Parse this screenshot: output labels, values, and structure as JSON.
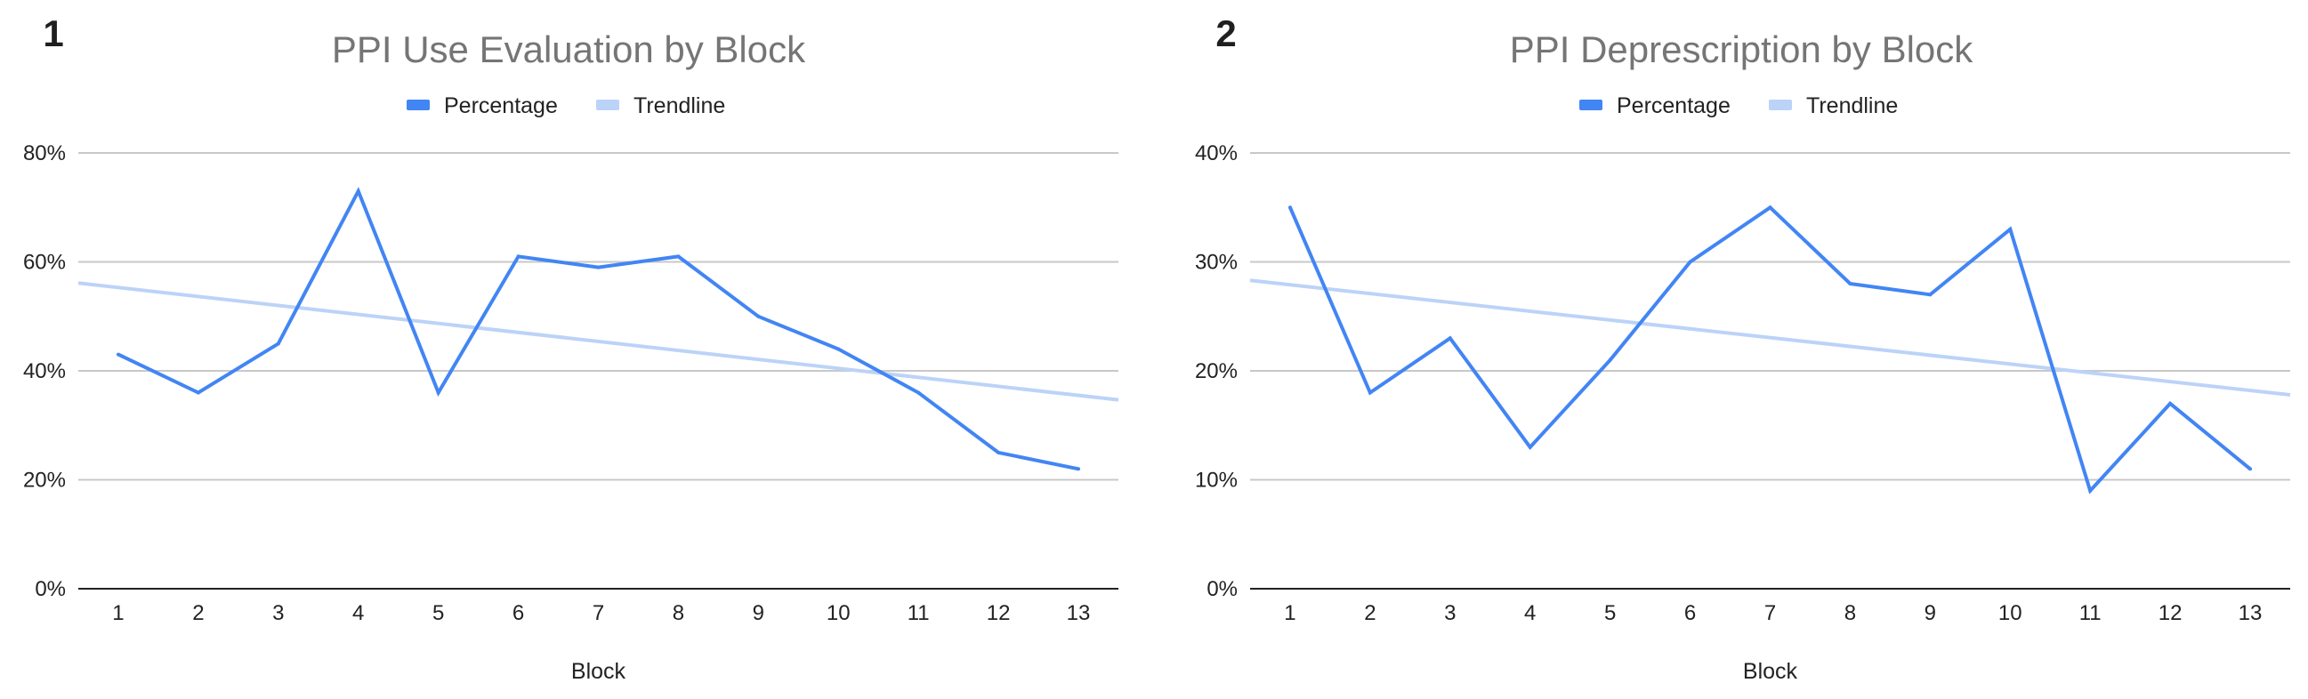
{
  "chart_data": [
    {
      "type": "line",
      "panel_label": "1",
      "title": "PPI Use Evaluation by Block",
      "xlabel": "Block",
      "ylabel": "",
      "categories": [
        "1",
        "2",
        "3",
        "4",
        "5",
        "6",
        "7",
        "8",
        "9",
        "10",
        "11",
        "12",
        "13"
      ],
      "series": [
        {
          "name": "Percentage",
          "color": "#4285f4",
          "values": [
            0.43,
            0.36,
            0.45,
            0.73,
            0.36,
            0.61,
            0.59,
            0.61,
            0.5,
            0.44,
            0.36,
            0.25,
            0.22
          ]
        }
      ],
      "trendline": {
        "name": "Trendline",
        "color": "#bcd3f8",
        "start": 0.553,
        "end": 0.355
      },
      "ylim": [
        0,
        0.8
      ],
      "yticks": [
        0,
        0.2,
        0.4,
        0.6,
        0.8
      ],
      "ytick_labels": [
        "0%",
        "20%",
        "40%",
        "60%",
        "80%"
      ],
      "grid": true,
      "legend_position": "top"
    },
    {
      "type": "line",
      "panel_label": "2",
      "title": "PPI Deprescription by Block",
      "xlabel": "Block",
      "ylabel": "",
      "categories": [
        "1",
        "2",
        "3",
        "4",
        "5",
        "6",
        "7",
        "8",
        "9",
        "10",
        "11",
        "12",
        "13"
      ],
      "series": [
        {
          "name": "Percentage",
          "color": "#4285f4",
          "values": [
            0.35,
            0.18,
            0.23,
            0.13,
            0.21,
            0.3,
            0.35,
            0.28,
            0.27,
            0.33,
            0.09,
            0.17,
            0.11
          ]
        }
      ],
      "trendline": {
        "name": "Trendline",
        "color": "#bcd3f8",
        "start": 0.279,
        "end": 0.182
      },
      "ylim": [
        0,
        0.4
      ],
      "yticks": [
        0,
        0.1,
        0.2,
        0.3,
        0.4
      ],
      "ytick_labels": [
        "0%",
        "10%",
        "20%",
        "30%",
        "40%"
      ],
      "grid": true,
      "legend_position": "top"
    }
  ]
}
